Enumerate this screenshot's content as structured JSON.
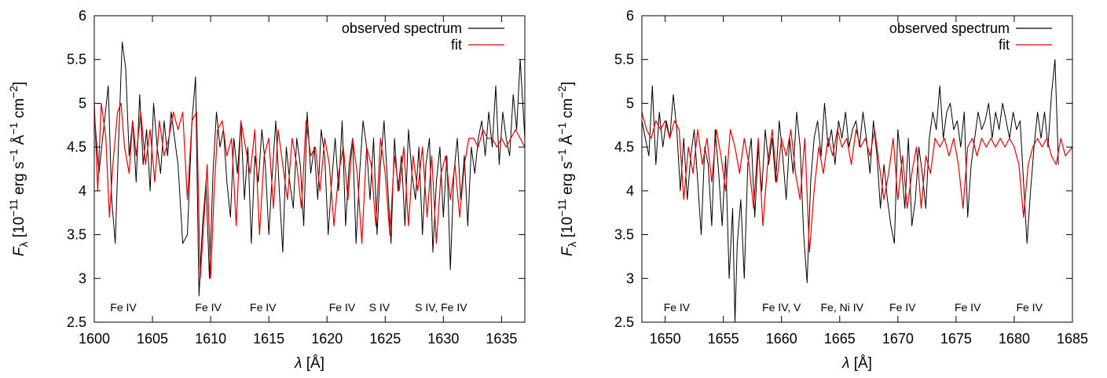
{
  "chart_data": [
    {
      "type": "line",
      "xlim": [
        1600,
        1637
      ],
      "ylim": [
        2.5,
        6
      ],
      "xticks": [
        1600,
        1605,
        1610,
        1615,
        1620,
        1625,
        1630,
        1635
      ],
      "yticks": [
        2.5,
        3,
        3.5,
        4,
        4.5,
        5,
        5.5,
        6
      ],
      "xtick_labels": [
        "1600",
        "1605",
        "1610",
        "1615",
        "1620",
        "1625",
        "1630",
        "1635"
      ],
      "ytick_labels": [
        "2.5",
        "3",
        "3.5",
        "4",
        "4.5",
        "5",
        "5.5",
        "6"
      ],
      "xlabel": {
        "main": "λ [Å]"
      },
      "ylabel": {
        "sym": "F",
        "sub": "λ",
        "pre": " [10",
        "exp1": "−11",
        "mid": " erg s",
        "exp2": "−1",
        "mid2": " Å",
        "exp3": "−1",
        "mid3": " cm",
        "exp4": "−2",
        "post": "]"
      },
      "legend": {
        "position": "top-right",
        "entries": [
          "observed spectrum",
          "fit"
        ]
      },
      "line_annotations": [
        {
          "x": 1602.5,
          "text": "Fe IV"
        },
        {
          "x": 1609.8,
          "text": "Fe IV"
        },
        {
          "x": 1614.5,
          "text": "Fe IV"
        },
        {
          "x": 1621.3,
          "text": "Fe IV"
        },
        {
          "x": 1624.5,
          "text": "S IV"
        },
        {
          "x": 1629.8,
          "text": "S IV, Fe IV"
        }
      ],
      "series": [
        {
          "name": "observed spectrum",
          "color": "#000000",
          "x": [
            1600.0,
            1600.4,
            1600.8,
            1601.2,
            1601.5,
            1601.8,
            1602.1,
            1602.4,
            1602.7,
            1603.0,
            1603.3,
            1603.6,
            1603.9,
            1604.2,
            1604.5,
            1604.8,
            1605.1,
            1605.4,
            1605.7,
            1606.0,
            1606.3,
            1606.6,
            1606.9,
            1607.2,
            1607.6,
            1608.0,
            1608.4,
            1608.7,
            1609.0,
            1609.3,
            1609.6,
            1609.9,
            1610.2,
            1610.5,
            1610.8,
            1611.1,
            1611.4,
            1611.7,
            1612.0,
            1612.3,
            1612.6,
            1612.9,
            1613.2,
            1613.5,
            1613.8,
            1614.1,
            1614.4,
            1614.7,
            1615.0,
            1615.3,
            1615.6,
            1615.9,
            1616.2,
            1616.5,
            1616.8,
            1617.1,
            1617.4,
            1617.7,
            1618.0,
            1618.3,
            1618.6,
            1618.9,
            1619.2,
            1619.5,
            1619.8,
            1620.1,
            1620.4,
            1620.7,
            1621.0,
            1621.3,
            1621.6,
            1621.9,
            1622.2,
            1622.5,
            1622.8,
            1623.1,
            1623.4,
            1623.7,
            1624.0,
            1624.3,
            1624.6,
            1624.9,
            1625.2,
            1625.5,
            1625.8,
            1626.1,
            1626.4,
            1626.7,
            1627.0,
            1627.3,
            1627.6,
            1627.9,
            1628.2,
            1628.5,
            1628.8,
            1629.1,
            1629.4,
            1629.7,
            1630.0,
            1630.3,
            1630.6,
            1630.9,
            1631.2,
            1631.5,
            1631.8,
            1632.1,
            1632.4,
            1632.7,
            1633.0,
            1633.3,
            1633.6,
            1633.9,
            1634.2,
            1634.5,
            1634.8,
            1635.1,
            1635.4,
            1635.7,
            1636.0,
            1636.3,
            1636.6,
            1637.0
          ],
          "y": [
            4.9,
            4.2,
            4.7,
            5.2,
            3.9,
            3.4,
            4.6,
            5.7,
            5.4,
            4.4,
            4.8,
            4.1,
            5.1,
            4.3,
            4.7,
            4.0,
            5.0,
            4.5,
            4.2,
            4.8,
            4.4,
            4.9,
            4.6,
            4.3,
            3.4,
            3.5,
            4.8,
            5.3,
            2.8,
            3.6,
            4.1,
            3.0,
            4.2,
            4.9,
            4.5,
            4.7,
            4.1,
            3.7,
            4.6,
            4.2,
            4.8,
            3.9,
            4.5,
            3.4,
            4.4,
            4.1,
            4.7,
            4.3,
            3.5,
            4.2,
            4.8,
            4.0,
            3.3,
            4.5,
            4.1,
            3.8,
            4.6,
            4.3,
            3.6,
            4.9,
            4.2,
            4.5,
            3.9,
            4.7,
            4.4,
            3.5,
            4.1,
            4.6,
            4.0,
            4.8,
            3.6,
            4.3,
            4.6,
            3.4,
            4.2,
            4.8,
            4.5,
            3.9,
            4.6,
            3.5,
            4.3,
            4.8,
            4.1,
            3.4,
            4.6,
            4.0,
            4.4,
            3.6,
            4.7,
            4.2,
            3.9,
            4.5,
            3.5,
            4.3,
            4.6,
            3.3,
            4.1,
            4.5,
            3.7,
            4.4,
            3.1,
            4.2,
            4.6,
            3.9,
            4.4,
            3.6,
            4.5,
            4.2,
            4.6,
            4.8,
            4.4,
            4.9,
            4.5,
            5.2,
            4.3,
            4.9,
            4.6,
            4.4,
            5.1,
            4.7,
            5.5,
            4.6
          ],
          "width": 1.0
        },
        {
          "name": "fit",
          "color": "#e00000",
          "x": [
            1600.0,
            1600.3,
            1600.6,
            1601.0,
            1601.3,
            1601.6,
            1602.0,
            1602.3,
            1602.6,
            1603.0,
            1603.3,
            1603.6,
            1604.0,
            1604.4,
            1604.8,
            1605.2,
            1605.6,
            1606.0,
            1606.4,
            1606.8,
            1607.2,
            1607.6,
            1608.0,
            1608.4,
            1608.8,
            1609.1,
            1609.4,
            1609.7,
            1610.0,
            1610.3,
            1610.6,
            1611.0,
            1611.4,
            1611.8,
            1612.2,
            1612.6,
            1613.0,
            1613.4,
            1613.8,
            1614.2,
            1614.6,
            1615.0,
            1615.4,
            1615.8,
            1616.2,
            1616.6,
            1617.0,
            1617.4,
            1617.8,
            1618.2,
            1618.6,
            1619.0,
            1619.4,
            1619.8,
            1620.2,
            1620.6,
            1621.0,
            1621.4,
            1621.8,
            1622.2,
            1622.6,
            1623.0,
            1623.4,
            1623.8,
            1624.2,
            1624.6,
            1625.0,
            1625.4,
            1625.8,
            1626.2,
            1626.6,
            1627.0,
            1627.4,
            1627.8,
            1628.2,
            1628.6,
            1629.0,
            1629.4,
            1629.8,
            1630.2,
            1630.6,
            1631.0,
            1631.4,
            1631.8,
            1632.2,
            1632.6,
            1633.0,
            1633.4,
            1633.8,
            1634.2,
            1634.6,
            1635.0,
            1635.4,
            1635.8,
            1636.2,
            1636.6,
            1637.0
          ],
          "y": [
            5.0,
            4.0,
            5.0,
            4.6,
            3.7,
            4.3,
            4.9,
            5.0,
            4.5,
            4.2,
            4.8,
            4.4,
            4.9,
            4.3,
            4.7,
            4.1,
            4.8,
            4.4,
            4.6,
            4.9,
            4.7,
            4.9,
            3.9,
            4.8,
            4.9,
            3.0,
            3.6,
            4.3,
            3.0,
            4.0,
            4.7,
            4.8,
            4.4,
            4.6,
            3.6,
            4.8,
            4.5,
            4.2,
            4.7,
            3.5,
            4.4,
            4.6,
            3.8,
            4.7,
            4.3,
            3.9,
            4.6,
            4.3,
            3.8,
            4.8,
            4.4,
            4.5,
            4.0,
            4.6,
            4.3,
            3.6,
            4.2,
            4.5,
            3.9,
            4.6,
            4.2,
            3.4,
            4.5,
            4.3,
            3.6,
            4.6,
            4.2,
            3.5,
            4.4,
            4.0,
            4.5,
            3.6,
            4.4,
            4.0,
            4.5,
            3.7,
            4.4,
            3.4,
            4.2,
            4.4,
            3.9,
            4.3,
            3.7,
            4.3,
            4.6,
            4.6,
            4.5,
            4.7,
            4.6,
            4.6,
            4.5,
            4.6,
            4.5,
            4.6,
            4.7,
            4.6,
            4.5
          ],
          "width": 1.2
        }
      ]
    },
    {
      "type": "line",
      "xlim": [
        1648,
        1685
      ],
      "ylim": [
        2.5,
        6
      ],
      "xticks": [
        1650,
        1655,
        1660,
        1665,
        1670,
        1675,
        1680,
        1685
      ],
      "yticks": [
        2.5,
        3,
        3.5,
        4,
        4.5,
        5,
        5.5,
        6
      ],
      "xtick_labels": [
        "1650",
        "1655",
        "1660",
        "1665",
        "1670",
        "1675",
        "1680",
        "1685"
      ],
      "ytick_labels": [
        "2.5",
        "3",
        "3.5",
        "4",
        "4.5",
        "5",
        "5.5",
        "6"
      ],
      "xlabel": {
        "main": "λ [Å]"
      },
      "ylabel": {
        "sym": "F",
        "sub": "λ",
        "pre": " [10",
        "exp1": "−11",
        "mid": " erg s",
        "exp2": "−1",
        "mid2": " Å",
        "exp3": "−1",
        "mid3": " cm",
        "exp4": "−2",
        "post": "]"
      },
      "legend": {
        "position": "top-right",
        "entries": [
          "observed spectrum",
          "fit"
        ]
      },
      "line_annotations": [
        {
          "x": 1651.0,
          "text": "Fe IV"
        },
        {
          "x": 1660.0,
          "text": "Fe IV, V"
        },
        {
          "x": 1665.2,
          "text": "Fe, Ni IV"
        },
        {
          "x": 1670.4,
          "text": "Fe IV"
        },
        {
          "x": 1676.0,
          "text": "Fe IV"
        },
        {
          "x": 1681.3,
          "text": "Fe IV"
        }
      ],
      "series": [
        {
          "name": "observed spectrum",
          "color": "#000000",
          "x": [
            1648.0,
            1648.3,
            1648.6,
            1648.9,
            1649.2,
            1649.5,
            1649.8,
            1650.1,
            1650.4,
            1650.7,
            1651.0,
            1651.3,
            1651.6,
            1651.9,
            1652.2,
            1652.5,
            1652.8,
            1653.1,
            1653.4,
            1653.7,
            1654.0,
            1654.3,
            1654.6,
            1654.9,
            1655.2,
            1655.5,
            1655.8,
            1656.0,
            1656.2,
            1656.5,
            1656.8,
            1657.1,
            1657.4,
            1657.7,
            1658.0,
            1658.3,
            1658.6,
            1658.9,
            1659.2,
            1659.5,
            1659.8,
            1660.1,
            1660.4,
            1660.7,
            1661.0,
            1661.3,
            1661.6,
            1661.9,
            1662.2,
            1662.5,
            1662.8,
            1663.1,
            1663.4,
            1663.7,
            1664.0,
            1664.3,
            1664.6,
            1664.9,
            1665.2,
            1665.5,
            1665.8,
            1666.1,
            1666.4,
            1666.7,
            1667.0,
            1667.3,
            1667.6,
            1667.9,
            1668.2,
            1668.5,
            1668.8,
            1669.1,
            1669.4,
            1669.7,
            1670.0,
            1670.3,
            1670.6,
            1670.9,
            1671.2,
            1671.5,
            1671.8,
            1672.1,
            1672.4,
            1672.7,
            1673.0,
            1673.3,
            1673.6,
            1673.9,
            1674.2,
            1674.5,
            1674.8,
            1675.1,
            1675.4,
            1675.7,
            1676.0,
            1676.3,
            1676.6,
            1676.9,
            1677.2,
            1677.5,
            1677.8,
            1678.1,
            1678.4,
            1678.7,
            1679.0,
            1679.3,
            1679.6,
            1679.9,
            1680.2,
            1680.5,
            1680.8,
            1681.1,
            1681.4,
            1681.7,
            1682.0,
            1682.3,
            1682.6,
            1682.9,
            1683.2,
            1683.5,
            1683.8
          ],
          "y": [
            4.8,
            4.6,
            4.4,
            5.2,
            4.3,
            4.9,
            4.5,
            4.8,
            4.6,
            5.1,
            4.7,
            4.0,
            4.6,
            3.9,
            4.4,
            4.7,
            4.1,
            3.5,
            4.5,
            4.3,
            3.6,
            4.7,
            4.2,
            3.6,
            4.4,
            3.0,
            3.8,
            2.5,
            3.4,
            3.9,
            3.0,
            4.3,
            4.6,
            3.7,
            4.5,
            4.0,
            4.7,
            4.3,
            4.6,
            4.1,
            4.8,
            4.4,
            3.9,
            4.6,
            4.2,
            4.9,
            4.5,
            3.5,
            2.95,
            4.1,
            4.6,
            4.8,
            4.4,
            5.0,
            4.5,
            4.7,
            4.3,
            4.8,
            4.6,
            4.9,
            4.5,
            4.7,
            4.8,
            4.5,
            4.9,
            4.6,
            4.2,
            4.8,
            4.4,
            3.8,
            4.3,
            3.9,
            3.6,
            3.4,
            4.7,
            4.3,
            3.8,
            4.6,
            3.6,
            3.9,
            4.5,
            4.2,
            3.8,
            4.6,
            4.9,
            4.7,
            5.2,
            4.6,
            4.9,
            5.0,
            4.7,
            4.8,
            4.5,
            4.9,
            3.7,
            4.3,
            4.6,
            4.9,
            4.7,
            4.8,
            5.0,
            4.6,
            4.9,
            4.7,
            5.0,
            4.8,
            4.6,
            4.9,
            4.7,
            4.8,
            4.1,
            3.4,
            4.0,
            4.5,
            4.9,
            4.6,
            4.9,
            4.5,
            5.1,
            5.5,
            4.3
          ],
          "width": 1.0
        },
        {
          "name": "fit",
          "color": "#e00000",
          "x": [
            1648.0,
            1648.4,
            1648.8,
            1649.2,
            1649.6,
            1650.0,
            1650.4,
            1650.8,
            1651.2,
            1651.6,
            1652.0,
            1652.4,
            1652.8,
            1653.2,
            1653.6,
            1654.0,
            1654.4,
            1654.8,
            1655.2,
            1655.6,
            1656.0,
            1656.4,
            1656.8,
            1657.2,
            1657.6,
            1658.0,
            1658.4,
            1658.8,
            1659.2,
            1659.6,
            1660.0,
            1660.4,
            1660.8,
            1661.2,
            1661.6,
            1662.0,
            1662.4,
            1662.8,
            1663.2,
            1663.6,
            1664.0,
            1664.4,
            1664.8,
            1665.2,
            1665.6,
            1666.0,
            1666.4,
            1666.8,
            1667.2,
            1667.6,
            1668.0,
            1668.4,
            1668.8,
            1669.2,
            1669.6,
            1670.0,
            1670.4,
            1670.8,
            1671.2,
            1671.6,
            1672.0,
            1672.4,
            1672.8,
            1673.2,
            1673.6,
            1674.0,
            1674.4,
            1674.8,
            1675.2,
            1675.6,
            1676.0,
            1676.4,
            1676.8,
            1677.2,
            1677.6,
            1678.0,
            1678.4,
            1678.8,
            1679.2,
            1679.6,
            1680.0,
            1680.4,
            1680.8,
            1681.2,
            1681.6,
            1682.0,
            1682.4,
            1682.8,
            1683.2,
            1683.6,
            1684.0,
            1684.4,
            1685.0
          ],
          "y": [
            4.9,
            4.7,
            4.6,
            4.8,
            4.7,
            4.8,
            4.6,
            4.8,
            4.7,
            3.9,
            4.5,
            4.2,
            4.7,
            4.3,
            4.6,
            4.1,
            4.7,
            4.4,
            4.0,
            4.7,
            4.5,
            4.2,
            4.6,
            4.3,
            3.8,
            4.6,
            3.6,
            4.3,
            4.7,
            4.1,
            4.6,
            4.4,
            4.7,
            4.2,
            3.9,
            4.6,
            3.3,
            4.0,
            4.5,
            4.2,
            4.6,
            4.4,
            4.7,
            4.5,
            4.6,
            4.3,
            4.7,
            4.5,
            4.6,
            4.4,
            4.7,
            4.3,
            3.9,
            4.2,
            4.6,
            3.9,
            4.4,
            3.8,
            4.2,
            4.5,
            3.8,
            4.4,
            4.2,
            4.6,
            4.5,
            4.6,
            4.4,
            4.6,
            4.3,
            3.8,
            4.5,
            4.6,
            4.4,
            4.6,
            4.5,
            4.6,
            4.5,
            4.6,
            4.5,
            4.6,
            4.5,
            4.3,
            3.7,
            4.3,
            4.5,
            4.6,
            4.5,
            4.6,
            4.4,
            4.3,
            4.6,
            4.4,
            4.5
          ],
          "width": 1.2
        }
      ]
    }
  ]
}
